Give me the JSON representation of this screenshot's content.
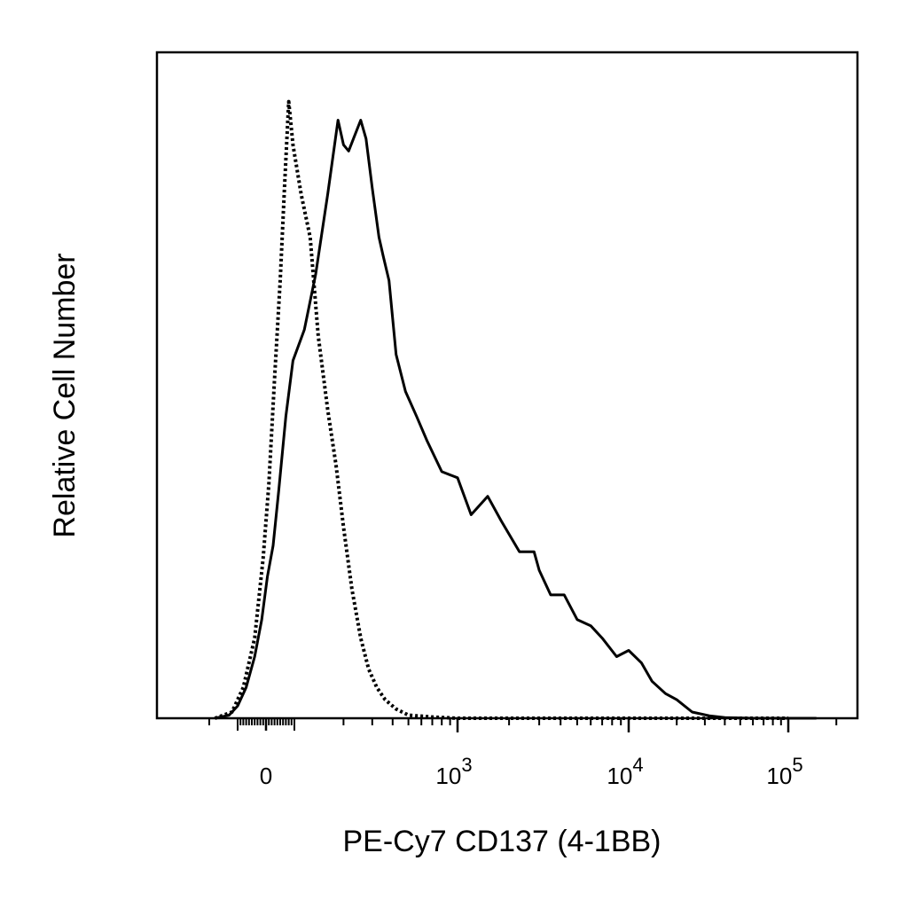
{
  "chart_data": {
    "type": "line",
    "title": "",
    "xlabel": "PE-Cy7 CD137 (4-1BB)",
    "ylabel": "Relative Cell Number",
    "x_scale": "biexponential (linear near 0, log from 10^2 upward)",
    "xlim": [
      -180,
      150000
    ],
    "ylim": [
      0,
      1.08
    ],
    "grid": false,
    "legend": "none",
    "x_ticks": [
      {
        "value": 0,
        "label": "0"
      },
      {
        "value": 1000,
        "label": "10",
        "exponent": "3"
      },
      {
        "value": 10000,
        "label": "10",
        "exponent": "4"
      },
      {
        "value": 100000,
        "label": "10",
        "exponent": "5"
      }
    ],
    "series": [
      {
        "style": "dotted",
        "color": "#000000",
        "x": [
          -180,
          -120,
          -80,
          -40,
          -10,
          10,
          30,
          50,
          65,
          80,
          95,
          110,
          125,
          140,
          160,
          180,
          200,
          225,
          255,
          285,
          320,
          360,
          420,
          500,
          700,
          1000,
          100000
        ],
        "y": [
          0.0,
          0.01,
          0.05,
          0.13,
          0.26,
          0.38,
          0.55,
          0.71,
          0.86,
          1.0,
          0.93,
          0.85,
          0.78,
          0.62,
          0.5,
          0.41,
          0.31,
          0.21,
          0.13,
          0.08,
          0.05,
          0.03,
          0.015,
          0.005,
          0.002,
          0.0,
          0.0
        ]
      },
      {
        "style": "solid",
        "color": "#000000",
        "x": [
          -180,
          -130,
          -100,
          -70,
          -40,
          -15,
          5,
          25,
          45,
          70,
          95,
          115,
          135,
          160,
          185,
          200,
          215,
          230,
          255,
          275,
          300,
          330,
          350,
          380,
          420,
          480,
          560,
          650,
          800,
          1000,
          1200,
          1500,
          1800,
          2300,
          2800,
          3000,
          3500,
          4200,
          5000,
          6000,
          7000,
          8500,
          10000,
          12000,
          14000,
          17000,
          20000,
          25000,
          32000,
          40000,
          60000,
          100000,
          150000
        ],
        "y": [
          0.0,
          0.005,
          0.02,
          0.05,
          0.1,
          0.16,
          0.23,
          0.28,
          0.37,
          0.49,
          0.58,
          0.63,
          0.72,
          0.85,
          0.97,
          0.93,
          0.92,
          0.94,
          0.97,
          0.94,
          0.86,
          0.78,
          0.75,
          0.71,
          0.59,
          0.53,
          0.49,
          0.45,
          0.4,
          0.39,
          0.33,
          0.36,
          0.32,
          0.27,
          0.27,
          0.24,
          0.2,
          0.2,
          0.16,
          0.15,
          0.13,
          0.1,
          0.11,
          0.09,
          0.06,
          0.04,
          0.03,
          0.01,
          0.004,
          0.001,
          0.0,
          0.0,
          0.0
        ]
      }
    ]
  }
}
